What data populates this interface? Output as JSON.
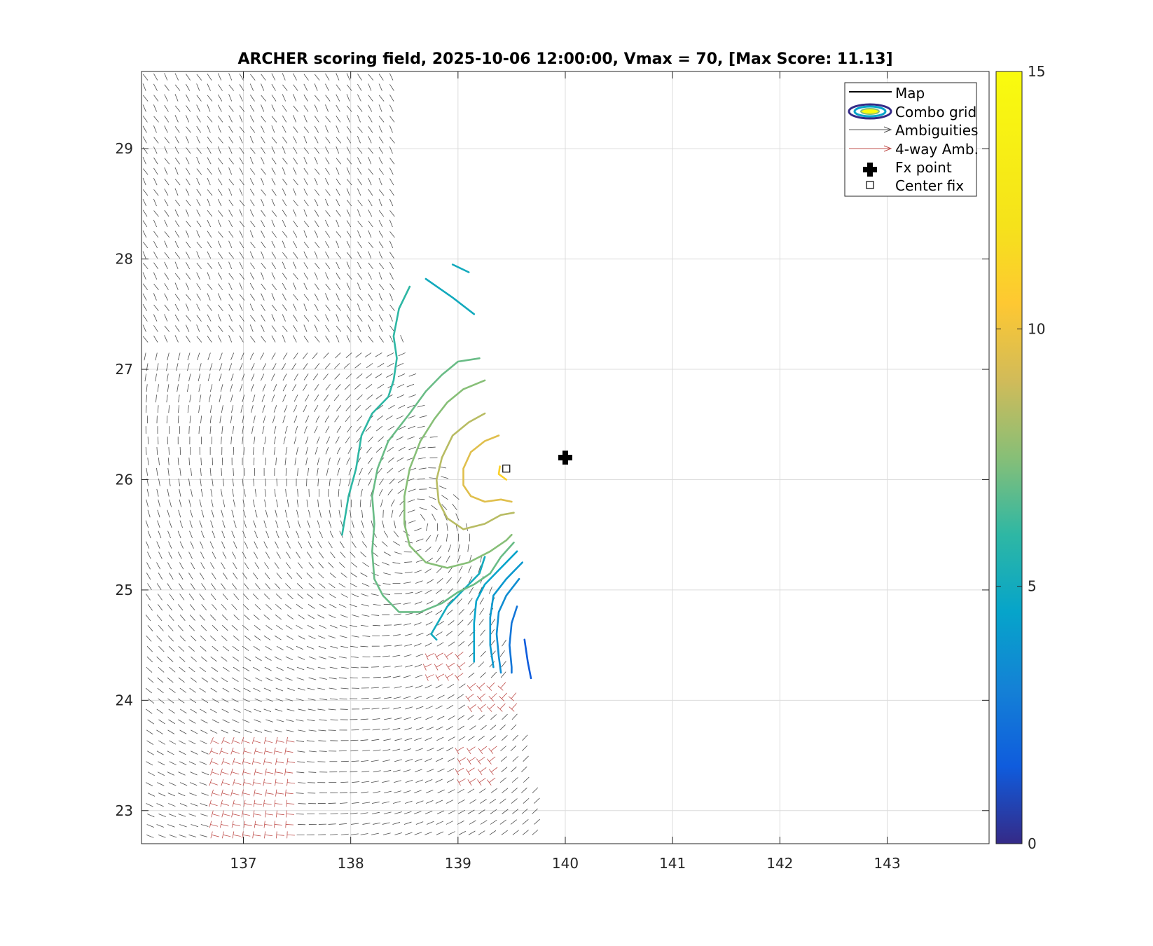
{
  "chart_data": {
    "type": "contour",
    "title": "ARCHER scoring field, 2025-10-06 12:00:00, Vmax = 70, [Max Score: 11.13]",
    "xlabel": "",
    "ylabel": "",
    "xlim": [
      136.05,
      143.95
    ],
    "ylim": [
      22.7,
      29.7
    ],
    "xticks": [
      137,
      138,
      139,
      140,
      141,
      142,
      143
    ],
    "yticks": [
      23,
      24,
      25,
      26,
      27,
      28,
      29
    ],
    "grid": true,
    "colorbar": {
      "min": 0,
      "max": 15,
      "ticks": [
        0,
        5,
        10,
        15
      ],
      "colormap": "parula"
    },
    "legend": {
      "placement": "top-right",
      "entries": [
        "Map",
        "Combo grid",
        "Ambiguities",
        "4-way Amb.",
        "Fx point",
        "Center fix"
      ]
    },
    "fx_point": {
      "x": 140.0,
      "y": 26.2
    },
    "center_fix": {
      "x": 139.45,
      "y": 26.1
    },
    "contours": [
      {
        "level": 1.5,
        "points": [
          [
            139.62,
            24.55
          ],
          [
            139.65,
            24.35
          ],
          [
            139.68,
            24.2
          ]
        ]
      },
      {
        "level": 2.5,
        "points": [
          [
            139.55,
            24.85
          ],
          [
            139.5,
            24.7
          ],
          [
            139.48,
            24.5
          ],
          [
            139.5,
            24.3
          ],
          [
            139.5,
            24.25
          ]
        ]
      },
      {
        "level": 3.5,
        "points": [
          [
            139.57,
            25.1
          ],
          [
            139.45,
            24.95
          ],
          [
            139.38,
            24.8
          ],
          [
            139.36,
            24.6
          ],
          [
            139.38,
            24.4
          ],
          [
            139.4,
            24.25
          ]
        ]
      },
      {
        "level": 4.0,
        "points": [
          [
            139.6,
            25.25
          ],
          [
            139.45,
            25.1
          ],
          [
            139.33,
            24.95
          ],
          [
            139.3,
            24.75
          ],
          [
            139.3,
            24.5
          ],
          [
            139.33,
            24.3
          ]
        ]
      },
      {
        "level": 4.5,
        "points": [
          [
            139.55,
            25.35
          ],
          [
            139.4,
            25.2
          ],
          [
            139.25,
            25.05
          ],
          [
            139.17,
            24.9
          ],
          [
            139.15,
            24.7
          ],
          [
            139.15,
            24.5
          ],
          [
            139.15,
            24.35
          ]
        ]
      },
      {
        "level": 5.0,
        "points": [
          [
            139.25,
            25.3
          ],
          [
            139.2,
            25.15
          ],
          [
            139.05,
            25.0
          ],
          [
            138.9,
            24.85
          ],
          [
            138.75,
            24.6
          ],
          [
            138.8,
            24.55
          ]
        ]
      },
      {
        "level": 5.0,
        "points": [
          [
            138.95,
            27.95
          ],
          [
            139.1,
            27.88
          ]
        ]
      },
      {
        "level": 5.0,
        "points": [
          [
            138.7,
            27.82
          ],
          [
            138.95,
            27.65
          ],
          [
            139.15,
            27.5
          ]
        ]
      },
      {
        "level": 6.0,
        "points": [
          [
            138.55,
            27.75
          ],
          [
            138.45,
            27.55
          ],
          [
            138.4,
            27.3
          ],
          [
            138.43,
            27.1
          ],
          [
            138.4,
            26.9
          ],
          [
            138.35,
            26.75
          ],
          [
            138.2,
            26.6
          ],
          [
            138.1,
            26.4
          ],
          [
            138.05,
            26.1
          ],
          [
            137.98,
            25.85
          ],
          [
            137.92,
            25.5
          ]
        ]
      },
      {
        "level": 7.0,
        "points": [
          [
            139.2,
            27.1
          ],
          [
            139.0,
            27.07
          ],
          [
            138.85,
            26.95
          ],
          [
            138.7,
            26.8
          ],
          [
            138.55,
            26.6
          ],
          [
            138.35,
            26.35
          ],
          [
            138.25,
            26.1
          ],
          [
            138.2,
            25.85
          ],
          [
            138.22,
            25.6
          ],
          [
            138.2,
            25.35
          ],
          [
            138.22,
            25.1
          ],
          [
            138.3,
            24.95
          ],
          [
            138.45,
            24.8
          ],
          [
            138.65,
            24.8
          ],
          [
            138.85,
            24.88
          ],
          [
            139.0,
            24.98
          ],
          [
            139.15,
            25.05
          ],
          [
            139.3,
            25.15
          ],
          [
            139.4,
            25.3
          ],
          [
            139.52,
            25.43
          ]
        ]
      },
      {
        "level": 7.5,
        "points": [
          [
            139.25,
            26.9
          ],
          [
            139.05,
            26.82
          ],
          [
            138.9,
            26.7
          ],
          [
            138.78,
            26.55
          ],
          [
            138.65,
            26.35
          ],
          [
            138.55,
            26.1
          ],
          [
            138.5,
            25.85
          ],
          [
            138.5,
            25.6
          ],
          [
            138.55,
            25.4
          ],
          [
            138.7,
            25.25
          ],
          [
            138.9,
            25.2
          ],
          [
            139.1,
            25.25
          ],
          [
            139.3,
            25.35
          ],
          [
            139.45,
            25.45
          ],
          [
            139.5,
            25.5
          ]
        ]
      },
      {
        "level": 8.5,
        "points": [
          [
            139.25,
            26.6
          ],
          [
            139.1,
            26.52
          ],
          [
            138.95,
            26.4
          ],
          [
            138.85,
            26.2
          ],
          [
            138.8,
            26.0
          ],
          [
            138.82,
            25.8
          ],
          [
            138.9,
            25.65
          ],
          [
            139.05,
            25.55
          ],
          [
            139.25,
            25.6
          ],
          [
            139.4,
            25.68
          ],
          [
            139.52,
            25.7
          ]
        ]
      },
      {
        "level": 9.5,
        "points": [
          [
            139.38,
            26.4
          ],
          [
            139.25,
            26.35
          ],
          [
            139.12,
            26.25
          ],
          [
            139.05,
            26.1
          ],
          [
            139.05,
            25.95
          ],
          [
            139.12,
            25.85
          ],
          [
            139.25,
            25.8
          ],
          [
            139.4,
            25.82
          ],
          [
            139.5,
            25.8
          ]
        ]
      },
      {
        "level": 11.0,
        "points": [
          [
            139.39,
            26.12
          ],
          [
            139.38,
            26.05
          ],
          [
            139.45,
            26.0
          ]
        ]
      }
    ]
  }
}
